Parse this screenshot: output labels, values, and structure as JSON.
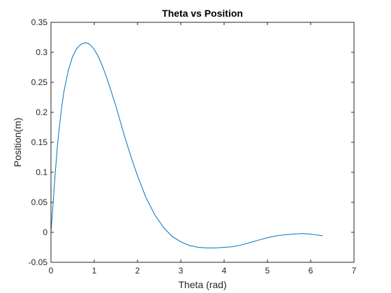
{
  "chart_data": {
    "type": "line",
    "title": "Theta vs Position",
    "xlabel": "Theta (rad)",
    "ylabel": "Position(m)",
    "xlim": [
      0,
      7
    ],
    "ylim": [
      -0.05,
      0.35
    ],
    "xticks": [
      0,
      1,
      2,
      3,
      4,
      5,
      6,
      7
    ],
    "xtick_labels": [
      "0",
      "1",
      "2",
      "3",
      "4",
      "5",
      "6",
      "7"
    ],
    "yticks": [
      -0.05,
      0,
      0.05,
      0.1,
      0.15,
      0.2,
      0.25,
      0.3,
      0.35
    ],
    "ytick_labels": [
      "-0.05",
      "0",
      "0.05",
      "0.1",
      "0.15",
      "0.2",
      "0.25",
      "0.3",
      "0.35"
    ],
    "grid": false,
    "series_color": "#0072BD",
    "series": [
      {
        "x": [
          0,
          0.05,
          0.1,
          0.15,
          0.2,
          0.25,
          0.3,
          0.4,
          0.5,
          0.6,
          0.7,
          0.8,
          0.85,
          0.9,
          1.0,
          1.1,
          1.2,
          1.3,
          1.4,
          1.5,
          1.6,
          1.7,
          1.8,
          1.9,
          2.0,
          2.2,
          2.4,
          2.6,
          2.8,
          3.0,
          3.2,
          3.4,
          3.6,
          3.8,
          4.0,
          4.2,
          4.4,
          4.6,
          4.8,
          5.0,
          5.2,
          5.4,
          5.6,
          5.8,
          6.0,
          6.1,
          6.2,
          6.28
        ],
        "values": [
          0.0,
          0.05,
          0.1,
          0.145,
          0.18,
          0.21,
          0.235,
          0.27,
          0.293,
          0.307,
          0.314,
          0.316,
          0.315,
          0.313,
          0.305,
          0.292,
          0.275,
          0.255,
          0.233,
          0.21,
          0.185,
          0.16,
          0.137,
          0.115,
          0.094,
          0.057,
          0.029,
          0.008,
          -0.007,
          -0.016,
          -0.022,
          -0.025,
          -0.026,
          -0.026,
          -0.025,
          -0.024,
          -0.021,
          -0.017,
          -0.013,
          -0.009,
          -0.006,
          -0.004,
          -0.003,
          -0.002,
          -0.003,
          -0.004,
          -0.005,
          -0.006
        ]
      }
    ]
  }
}
